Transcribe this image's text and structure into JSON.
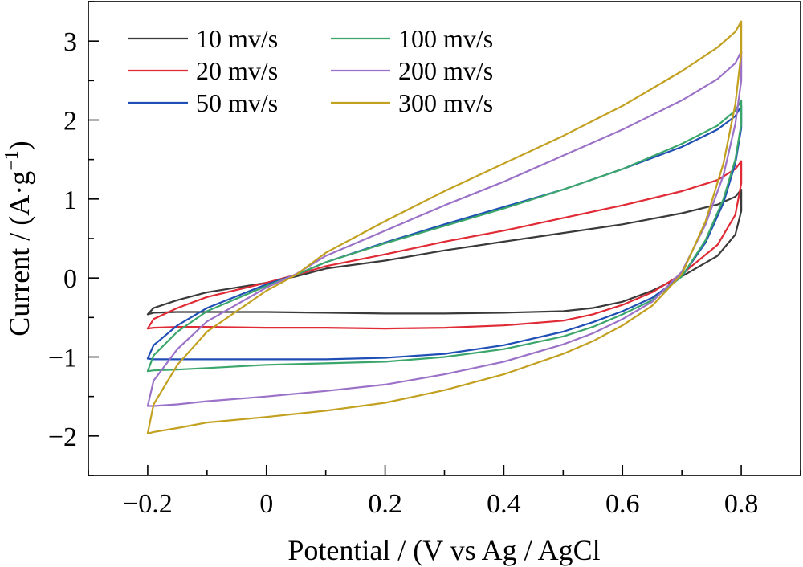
{
  "chart_data": {
    "type": "line",
    "title": "",
    "xlabel": "Potential / (V vs Ag / AgCl",
    "ylabel": "Current / (A·g",
    "ylabel_sup": "−1",
    "ylabel_close": ")",
    "xlim": [
      -0.3,
      0.9
    ],
    "ylim": [
      -2.5,
      3.5
    ],
    "xticks": [
      -0.2,
      0,
      0.2,
      0.4,
      0.6,
      0.8
    ],
    "xtick_labels": [
      "−0.2",
      "0",
      "0.2",
      "0.4",
      "0.6",
      "0.8"
    ],
    "yticks": [
      -2,
      -1,
      0,
      1,
      2,
      3
    ],
    "ytick_labels": [
      "−2",
      "−1",
      "0",
      "1",
      "2",
      "3"
    ],
    "grid": false,
    "legend_position": "top-left",
    "series": [
      {
        "name": "10 mv/s",
        "color": "#3a3a3a",
        "x": [
          -0.2,
          -0.19,
          -0.15,
          -0.1,
          0.0,
          0.05,
          0.1,
          0.2,
          0.3,
          0.4,
          0.5,
          0.6,
          0.7,
          0.76,
          0.79,
          0.8,
          0.8,
          0.79,
          0.76,
          0.7,
          0.65,
          0.6,
          0.55,
          0.5,
          0.4,
          0.3,
          0.2,
          0.1,
          0.0,
          -0.1,
          -0.15,
          -0.19,
          -0.2
        ],
        "y": [
          -0.46,
          -0.38,
          -0.28,
          -0.18,
          -0.06,
          0.02,
          0.12,
          0.22,
          0.35,
          0.46,
          0.57,
          0.68,
          0.82,
          0.93,
          1.03,
          1.12,
          0.85,
          0.55,
          0.28,
          0.02,
          -0.16,
          -0.3,
          -0.38,
          -0.42,
          -0.44,
          -0.45,
          -0.45,
          -0.44,
          -0.43,
          -0.43,
          -0.43,
          -0.44,
          -0.46
        ]
      },
      {
        "name": "20 mv/s",
        "color": "#e02a35",
        "x": [
          -0.2,
          -0.19,
          -0.15,
          -0.1,
          0.0,
          0.05,
          0.1,
          0.2,
          0.3,
          0.4,
          0.5,
          0.6,
          0.7,
          0.76,
          0.79,
          0.8,
          0.8,
          0.79,
          0.76,
          0.7,
          0.65,
          0.6,
          0.55,
          0.5,
          0.4,
          0.3,
          0.2,
          0.1,
          0.0,
          -0.1,
          -0.15,
          -0.19,
          -0.2
        ],
        "y": [
          -0.64,
          -0.52,
          -0.38,
          -0.24,
          -0.06,
          0.04,
          0.15,
          0.3,
          0.46,
          0.6,
          0.76,
          0.92,
          1.1,
          1.24,
          1.38,
          1.48,
          1.2,
          0.8,
          0.42,
          0.05,
          -0.18,
          -0.34,
          -0.46,
          -0.54,
          -0.6,
          -0.63,
          -0.64,
          -0.63,
          -0.63,
          -0.62,
          -0.62,
          -0.63,
          -0.64
        ]
      },
      {
        "name": "50 mv/s",
        "color": "#1f4fb5",
        "x": [
          -0.2,
          -0.19,
          -0.15,
          -0.1,
          0.0,
          0.05,
          0.1,
          0.2,
          0.3,
          0.4,
          0.5,
          0.6,
          0.7,
          0.76,
          0.79,
          0.8,
          0.8,
          0.79,
          0.77,
          0.74,
          0.7,
          0.65,
          0.6,
          0.55,
          0.5,
          0.4,
          0.3,
          0.2,
          0.1,
          0.0,
          -0.1,
          -0.15,
          -0.19,
          -0.2
        ],
        "y": [
          -1.02,
          -0.85,
          -0.6,
          -0.38,
          -0.08,
          0.04,
          0.2,
          0.45,
          0.68,
          0.9,
          1.12,
          1.38,
          1.66,
          1.88,
          2.05,
          2.18,
          1.9,
          1.45,
          0.95,
          0.45,
          0.02,
          -0.25,
          -0.42,
          -0.56,
          -0.68,
          -0.85,
          -0.96,
          -1.01,
          -1.03,
          -1.03,
          -1.03,
          -1.03,
          -1.03,
          -1.02
        ]
      },
      {
        "name": "100 mv/s",
        "color": "#3aa66b",
        "x": [
          -0.2,
          -0.19,
          -0.15,
          -0.1,
          0.0,
          0.05,
          0.1,
          0.2,
          0.3,
          0.4,
          0.5,
          0.6,
          0.7,
          0.76,
          0.79,
          0.8,
          0.8,
          0.79,
          0.77,
          0.74,
          0.7,
          0.65,
          0.6,
          0.55,
          0.5,
          0.4,
          0.3,
          0.2,
          0.1,
          0.0,
          -0.1,
          -0.15,
          -0.19,
          -0.2
        ],
        "y": [
          -1.18,
          -0.98,
          -0.68,
          -0.42,
          -0.1,
          0.04,
          0.2,
          0.44,
          0.66,
          0.88,
          1.12,
          1.38,
          1.7,
          1.93,
          2.12,
          2.25,
          1.95,
          1.5,
          1.0,
          0.48,
          0.02,
          -0.28,
          -0.46,
          -0.62,
          -0.74,
          -0.9,
          -1.0,
          -1.06,
          -1.08,
          -1.1,
          -1.14,
          -1.16,
          -1.17,
          -1.18
        ]
      },
      {
        "name": "200 mv/s",
        "color": "#9b72c8",
        "x": [
          -0.2,
          -0.19,
          -0.15,
          -0.1,
          0.0,
          0.05,
          0.1,
          0.2,
          0.3,
          0.4,
          0.5,
          0.6,
          0.7,
          0.76,
          0.79,
          0.8,
          0.8,
          0.79,
          0.77,
          0.74,
          0.7,
          0.65,
          0.6,
          0.55,
          0.5,
          0.4,
          0.3,
          0.2,
          0.1,
          0.0,
          -0.1,
          -0.15,
          -0.19,
          -0.2
        ],
        "y": [
          -1.62,
          -1.3,
          -0.9,
          -0.55,
          -0.12,
          0.05,
          0.28,
          0.6,
          0.92,
          1.22,
          1.55,
          1.88,
          2.25,
          2.52,
          2.72,
          2.87,
          2.5,
          1.95,
          1.3,
          0.68,
          0.08,
          -0.3,
          -0.52,
          -0.7,
          -0.84,
          -1.06,
          -1.22,
          -1.35,
          -1.43,
          -1.5,
          -1.56,
          -1.6,
          -1.62,
          -1.62
        ]
      },
      {
        "name": "300 mv/s",
        "color": "#c2a020",
        "x": [
          -0.2,
          -0.19,
          -0.15,
          -0.1,
          0.0,
          0.05,
          0.1,
          0.2,
          0.3,
          0.4,
          0.5,
          0.6,
          0.7,
          0.76,
          0.79,
          0.8,
          0.8,
          0.79,
          0.77,
          0.74,
          0.7,
          0.65,
          0.6,
          0.55,
          0.5,
          0.4,
          0.3,
          0.2,
          0.1,
          0.0,
          -0.1,
          -0.15,
          -0.19,
          -0.2
        ],
        "y": [
          -1.97,
          -1.6,
          -1.1,
          -0.68,
          -0.16,
          0.04,
          0.32,
          0.72,
          1.1,
          1.45,
          1.8,
          2.18,
          2.62,
          2.92,
          3.12,
          3.25,
          2.85,
          2.2,
          1.45,
          0.72,
          0.05,
          -0.35,
          -0.6,
          -0.8,
          -0.96,
          -1.22,
          -1.42,
          -1.58,
          -1.68,
          -1.76,
          -1.83,
          -1.9,
          -1.95,
          -1.97
        ]
      }
    ]
  }
}
